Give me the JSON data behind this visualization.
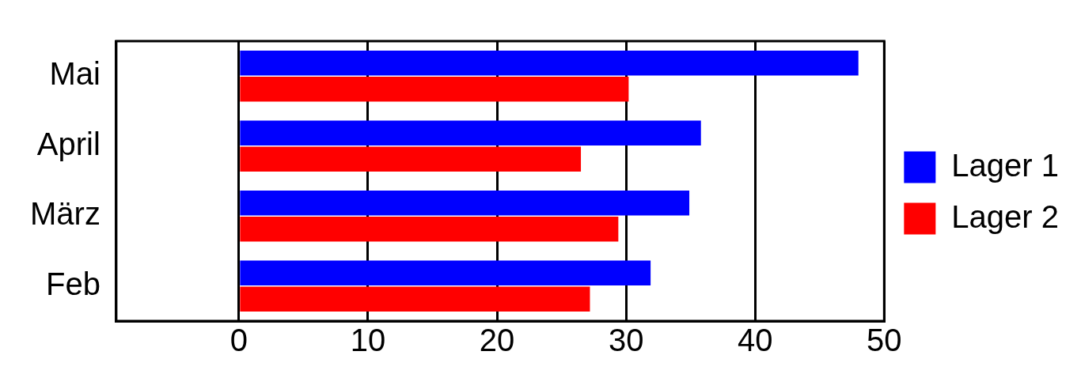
{
  "chart_data": {
    "type": "bar",
    "orientation": "horizontal",
    "categories": [
      "Mai",
      "April",
      "März",
      "Feb"
    ],
    "series": [
      {
        "name": "Lager 1",
        "color": "#0000ff",
        "values": [
          48,
          35.8,
          34.9,
          31.9
        ]
      },
      {
        "name": "Lager 2",
        "color": "#ff0000",
        "values": [
          30.2,
          26.5,
          29.4,
          27.2
        ]
      }
    ],
    "xlim": [
      -9.5,
      50
    ],
    "xticks": [
      0,
      10,
      20,
      30,
      40,
      50
    ],
    "grid": "x",
    "legend": "right"
  }
}
